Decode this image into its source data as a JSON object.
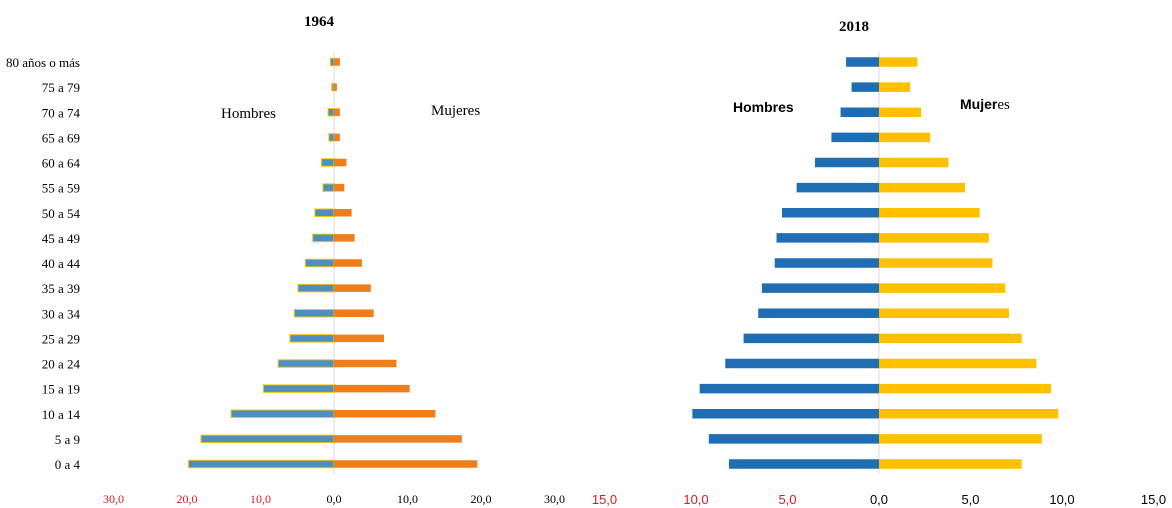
{
  "chart_data": [
    {
      "type": "bar",
      "orientation": "horizontal",
      "title": "1964",
      "left_label": "Hombres",
      "right_label": "Mujeres",
      "categories": [
        "0 a 4",
        "5 a 9",
        "10 a 14",
        "15 a 19",
        "20 a 24",
        "25 a 29",
        "30 a 34",
        "35 a 39",
        "40 a 44",
        "45 a 49",
        "50 a 54",
        "55 a 59",
        "60 a 64",
        "65 a 69",
        "70 a 74",
        "75 a 79",
        "80 años o más"
      ],
      "series": [
        {
          "values": [
            19.8,
            18.1,
            14.0,
            9.6,
            7.6,
            6.0,
            5.4,
            4.9,
            3.9,
            2.9,
            2.6,
            1.5,
            1.7,
            0.7,
            0.8,
            0.3,
            0.5
          ],
          "color": "#4f8fc0",
          "edge": "#f2c600"
        },
        {
          "values": [
            19.5,
            17.4,
            13.8,
            10.3,
            8.5,
            6.8,
            5.4,
            5.0,
            3.8,
            2.8,
            2.4,
            1.4,
            1.7,
            0.8,
            0.8,
            0.4,
            0.8
          ],
          "color": "#ef7d1a"
        }
      ],
      "xlim": [
        -30,
        30
      ],
      "x_tick_labels": [
        "30,0",
        "20,0",
        "10,0",
        "0,0",
        "10,0",
        "20,0",
        "30,0"
      ],
      "x_ticks": [
        -30,
        -20,
        -10,
        0,
        10,
        20,
        30
      ]
    },
    {
      "type": "bar",
      "orientation": "horizontal",
      "title": "2018",
      "left_label": "Hombres",
      "right_label_bold": "Mujer",
      "right_label_rest": "es",
      "categories": [
        "0 a 4",
        "5 a 9",
        "10 a 14",
        "15 a 19",
        "20 a 24",
        "25 a 29",
        "30 a 34",
        "35 a 39",
        "40 a 44",
        "45 a 49",
        "50 a 54",
        "55 a 59",
        "60 a 64",
        "65 a 69",
        "70 a 74",
        "75 a 79",
        "80 años o más"
      ],
      "series": [
        {
          "values": [
            8.2,
            9.3,
            10.2,
            9.8,
            8.4,
            7.4,
            6.6,
            6.4,
            5.7,
            5.6,
            5.3,
            4.5,
            3.5,
            2.6,
            2.1,
            1.5,
            1.8
          ],
          "color": "#1f6db3"
        },
        {
          "values": [
            7.8,
            8.9,
            9.8,
            9.4,
            8.6,
            7.8,
            7.1,
            6.9,
            6.2,
            6.0,
            5.5,
            4.7,
            3.8,
            2.8,
            2.3,
            1.7,
            2.1
          ],
          "color": "#ffc000"
        }
      ],
      "xlim": [
        -15,
        15
      ],
      "x_tick_labels": [
        "15,0",
        "10,0",
        "5,0",
        "0,0",
        "5,0",
        "10,0",
        "15,0"
      ],
      "x_ticks": [
        -15,
        -10,
        -5,
        0,
        5,
        10,
        15
      ]
    }
  ],
  "colors": {
    "left_tick_color": "#e0191f",
    "right_tick_color": "#000000",
    "zero_line": "#d9d9d9"
  }
}
